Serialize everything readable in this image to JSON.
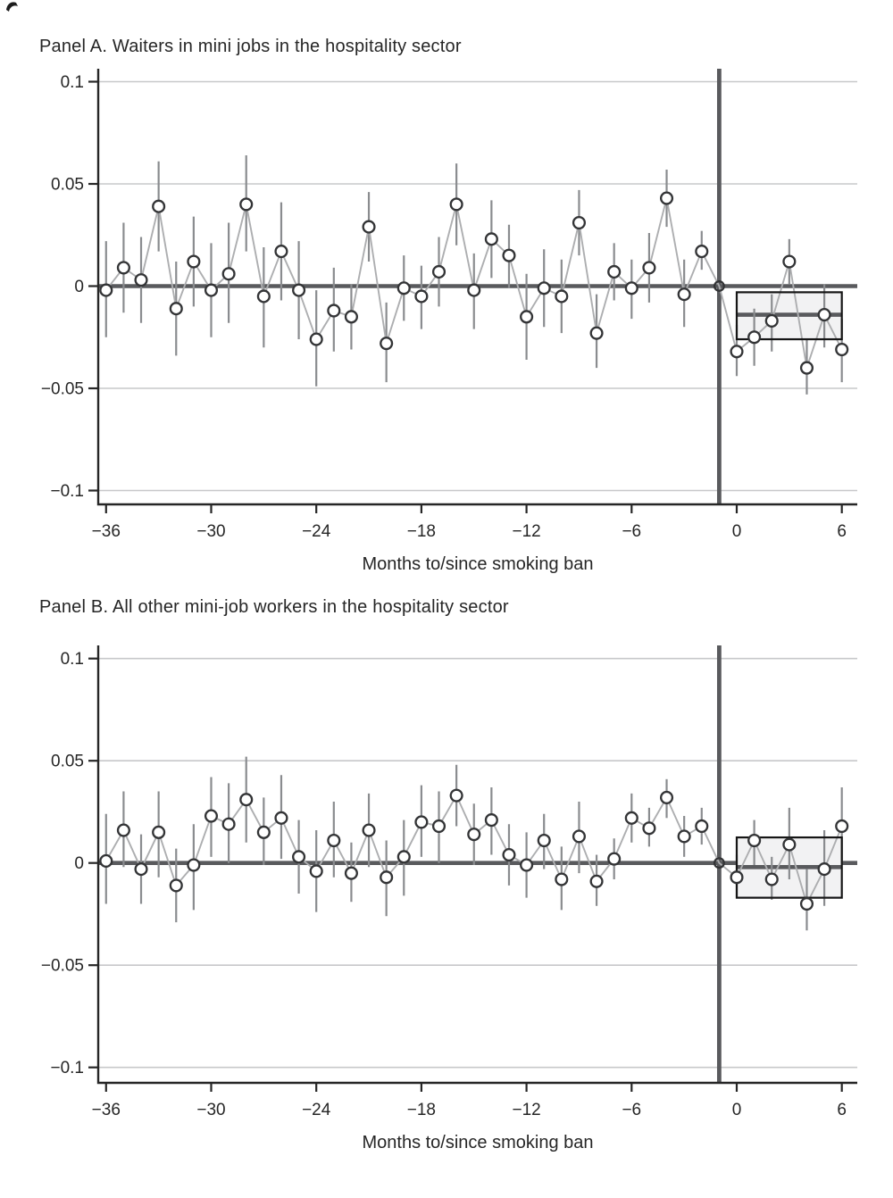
{
  "colors": {
    "background": "#ffffff",
    "text": "#262626",
    "spine": "#262626",
    "gridline": "#c7c8ca",
    "zero_line": "#595a5d",
    "event_line": "#595a5d",
    "error_bar": "#8a8c8f",
    "connector": "#adaeb0",
    "marker_stroke": "#333436",
    "marker_fill": "#ffffff",
    "post_box_fill": "#f2f2f3",
    "post_box_border": "#161616",
    "post_mean_line": "#595a5d"
  },
  "chart_data": [
    {
      "type": "scatter",
      "title": "Panel A. Waiters in mini jobs in the hospitality sector",
      "xlabel": "Months to/since smoking ban",
      "ylabel": "",
      "xlim": [
        -37,
        7
      ],
      "ylim": [
        -0.1,
        0.1
      ],
      "grid": true,
      "event_line_month": -1,
      "yticks": [
        {
          "v": 0.1,
          "label": "0.1"
        },
        {
          "v": 0.05,
          "label": "0.05"
        },
        {
          "v": 0,
          "label": "0"
        },
        {
          "v": -0.05,
          "label": "−0.05"
        },
        {
          "v": -0.1,
          "label": "−0.1"
        }
      ],
      "xticks": [
        {
          "v": -36,
          "label": "−36"
        },
        {
          "v": -30,
          "label": "−30"
        },
        {
          "v": -24,
          "label": "−24"
        },
        {
          "v": -18,
          "label": "−18"
        },
        {
          "v": -12,
          "label": "−12"
        },
        {
          "v": -6,
          "label": "−6"
        },
        {
          "v": 0,
          "label": "0"
        },
        {
          "v": 6,
          "label": "6"
        }
      ],
      "points": [
        {
          "m": -36,
          "v": -0.002,
          "lo": -0.025,
          "hi": 0.022
        },
        {
          "m": -35,
          "v": 0.009,
          "lo": -0.013,
          "hi": 0.031
        },
        {
          "m": -34,
          "v": 0.003,
          "lo": -0.018,
          "hi": 0.024
        },
        {
          "m": -33,
          "v": 0.039,
          "lo": 0.017,
          "hi": 0.061
        },
        {
          "m": -32,
          "v": -0.011,
          "lo": -0.034,
          "hi": 0.012
        },
        {
          "m": -31,
          "v": 0.012,
          "lo": -0.01,
          "hi": 0.034
        },
        {
          "m": -30,
          "v": -0.002,
          "lo": -0.025,
          "hi": 0.021
        },
        {
          "m": -29,
          "v": 0.006,
          "lo": -0.018,
          "hi": 0.031
        },
        {
          "m": -28,
          "v": 0.04,
          "lo": 0.017,
          "hi": 0.064
        },
        {
          "m": -27,
          "v": -0.005,
          "lo": -0.03,
          "hi": 0.019
        },
        {
          "m": -26,
          "v": 0.017,
          "lo": -0.007,
          "hi": 0.041
        },
        {
          "m": -25,
          "v": -0.002,
          "lo": -0.026,
          "hi": 0.022
        },
        {
          "m": -24,
          "v": -0.026,
          "lo": -0.049,
          "hi": -0.002
        },
        {
          "m": -23,
          "v": -0.012,
          "lo": -0.032,
          "hi": 0.009
        },
        {
          "m": -22,
          "v": -0.015,
          "lo": -0.031,
          "hi": 0.001
        },
        {
          "m": -21,
          "v": 0.029,
          "lo": 0.012,
          "hi": 0.046
        },
        {
          "m": -20,
          "v": -0.028,
          "lo": -0.047,
          "hi": -0.008
        },
        {
          "m": -19,
          "v": -0.001,
          "lo": -0.017,
          "hi": 0.015
        },
        {
          "m": -18,
          "v": -0.005,
          "lo": -0.021,
          "hi": 0.01
        },
        {
          "m": -17,
          "v": 0.007,
          "lo": -0.01,
          "hi": 0.024
        },
        {
          "m": -16,
          "v": 0.04,
          "lo": 0.02,
          "hi": 0.06
        },
        {
          "m": -15,
          "v": -0.002,
          "lo": -0.021,
          "hi": 0.016
        },
        {
          "m": -14,
          "v": 0.023,
          "lo": 0.004,
          "hi": 0.042
        },
        {
          "m": -13,
          "v": 0.015,
          "lo": -0.001,
          "hi": 0.03
        },
        {
          "m": -12,
          "v": -0.015,
          "lo": -0.036,
          "hi": 0.006
        },
        {
          "m": -11,
          "v": -0.001,
          "lo": -0.02,
          "hi": 0.018
        },
        {
          "m": -10,
          "v": -0.005,
          "lo": -0.023,
          "hi": 0.013
        },
        {
          "m": -9,
          "v": 0.031,
          "lo": 0.015,
          "hi": 0.047
        },
        {
          "m": -8,
          "v": -0.023,
          "lo": -0.04,
          "hi": -0.004
        },
        {
          "m": -7,
          "v": 0.007,
          "lo": -0.007,
          "hi": 0.021
        },
        {
          "m": -6,
          "v": -0.001,
          "lo": -0.016,
          "hi": 0.013
        },
        {
          "m": -5,
          "v": 0.009,
          "lo": -0.008,
          "hi": 0.026
        },
        {
          "m": -4,
          "v": 0.043,
          "lo": 0.029,
          "hi": 0.057
        },
        {
          "m": -3,
          "v": -0.004,
          "lo": -0.02,
          "hi": 0.013
        },
        {
          "m": -2,
          "v": 0.017,
          "lo": 0.008,
          "hi": 0.027
        },
        {
          "m": -1,
          "v": 0,
          "ref": true
        },
        {
          "m": 0,
          "v": -0.032,
          "lo": -0.044,
          "hi": -0.019
        },
        {
          "m": 1,
          "v": -0.025,
          "lo": -0.039,
          "hi": -0.011
        },
        {
          "m": 2,
          "v": -0.017,
          "lo": -0.032,
          "hi": -0.004
        },
        {
          "m": 3,
          "v": 0.012,
          "lo": 0.001,
          "hi": 0.023
        },
        {
          "m": 4,
          "v": -0.04,
          "lo": -0.053,
          "hi": -0.026
        },
        {
          "m": 5,
          "v": -0.014,
          "lo": -0.03,
          "hi": 0.001
        },
        {
          "m": 6,
          "v": -0.031,
          "lo": -0.047,
          "hi": -0.016
        }
      ],
      "post_average": {
        "from": 0,
        "to": 6,
        "mean": -0.014,
        "lo": -0.026,
        "hi": -0.003
      }
    },
    {
      "type": "scatter",
      "title": "Panel B. All other mini-job workers in the hospitality sector",
      "xlabel": "Months to/since smoking ban",
      "ylabel": "",
      "xlim": [
        -37,
        7
      ],
      "ylim": [
        -0.1,
        0.1
      ],
      "grid": true,
      "event_line_month": -1,
      "yticks": [
        {
          "v": 0.1,
          "label": "0.1"
        },
        {
          "v": 0.05,
          "label": "0.05"
        },
        {
          "v": 0,
          "label": "0"
        },
        {
          "v": -0.05,
          "label": "−0.05"
        },
        {
          "v": -0.1,
          "label": "−0.1"
        }
      ],
      "xticks": [
        {
          "v": -36,
          "label": "−36"
        },
        {
          "v": -30,
          "label": "−30"
        },
        {
          "v": -24,
          "label": "−24"
        },
        {
          "v": -18,
          "label": "−18"
        },
        {
          "v": -12,
          "label": "−12"
        },
        {
          "v": -6,
          "label": "−6"
        },
        {
          "v": 0,
          "label": "0"
        },
        {
          "v": 6,
          "label": "6"
        }
      ],
      "points": [
        {
          "m": -36,
          "v": 0.001,
          "lo": -0.02,
          "hi": 0.024
        },
        {
          "m": -35,
          "v": 0.016,
          "lo": -0.002,
          "hi": 0.035
        },
        {
          "m": -34,
          "v": -0.003,
          "lo": -0.02,
          "hi": 0.014
        },
        {
          "m": -33,
          "v": 0.015,
          "lo": -0.007,
          "hi": 0.035
        },
        {
          "m": -32,
          "v": -0.011,
          "lo": -0.029,
          "hi": 0.007
        },
        {
          "m": -31,
          "v": -0.001,
          "lo": -0.023,
          "hi": 0.019
        },
        {
          "m": -30,
          "v": 0.023,
          "lo": 0.003,
          "hi": 0.042
        },
        {
          "m": -29,
          "v": 0.019,
          "lo": 0.0,
          "hi": 0.039
        },
        {
          "m": -28,
          "v": 0.031,
          "lo": 0.01,
          "hi": 0.052
        },
        {
          "m": -27,
          "v": 0.015,
          "lo": -0.001,
          "hi": 0.032
        },
        {
          "m": -26,
          "v": 0.022,
          "lo": 0.002,
          "hi": 0.043
        },
        {
          "m": -25,
          "v": 0.003,
          "lo": -0.015,
          "hi": 0.021
        },
        {
          "m": -24,
          "v": -0.004,
          "lo": -0.024,
          "hi": 0.016
        },
        {
          "m": -23,
          "v": 0.011,
          "lo": -0.007,
          "hi": 0.03
        },
        {
          "m": -22,
          "v": -0.005,
          "lo": -0.019,
          "hi": 0.01
        },
        {
          "m": -21,
          "v": 0.016,
          "lo": -0.002,
          "hi": 0.034
        },
        {
          "m": -20,
          "v": -0.007,
          "lo": -0.026,
          "hi": 0.011
        },
        {
          "m": -19,
          "v": 0.003,
          "lo": -0.016,
          "hi": 0.021
        },
        {
          "m": -18,
          "v": 0.02,
          "lo": 0.003,
          "hi": 0.038
        },
        {
          "m": -17,
          "v": 0.018,
          "lo": 0.0,
          "hi": 0.035
        },
        {
          "m": -16,
          "v": 0.033,
          "lo": 0.018,
          "hi": 0.048
        },
        {
          "m": -15,
          "v": 0.014,
          "lo": -0.001,
          "hi": 0.029
        },
        {
          "m": -14,
          "v": 0.021,
          "lo": 0.004,
          "hi": 0.037
        },
        {
          "m": -13,
          "v": 0.004,
          "lo": -0.011,
          "hi": 0.019
        },
        {
          "m": -12,
          "v": -0.001,
          "lo": -0.017,
          "hi": 0.015
        },
        {
          "m": -11,
          "v": 0.011,
          "lo": -0.003,
          "hi": 0.024
        },
        {
          "m": -10,
          "v": -0.008,
          "lo": -0.023,
          "hi": 0.008
        },
        {
          "m": -9,
          "v": 0.013,
          "lo": -0.005,
          "hi": 0.03
        },
        {
          "m": -8,
          "v": -0.009,
          "lo": -0.021,
          "hi": 0.004
        },
        {
          "m": -7,
          "v": 0.002,
          "lo": -0.008,
          "hi": 0.012
        },
        {
          "m": -6,
          "v": 0.022,
          "lo": 0.01,
          "hi": 0.034
        },
        {
          "m": -5,
          "v": 0.017,
          "lo": 0.008,
          "hi": 0.027
        },
        {
          "m": -4,
          "v": 0.032,
          "lo": 0.022,
          "hi": 0.041
        },
        {
          "m": -3,
          "v": 0.013,
          "lo": 0.003,
          "hi": 0.023
        },
        {
          "m": -2,
          "v": 0.018,
          "lo": 0.009,
          "hi": 0.027
        },
        {
          "m": -1,
          "v": 0,
          "ref": true
        },
        {
          "m": 0,
          "v": -0.007,
          "lo": -0.017,
          "hi": 0.004
        },
        {
          "m": 1,
          "v": 0.011,
          "lo": -0.001,
          "hi": 0.021
        },
        {
          "m": 2,
          "v": -0.008,
          "lo": -0.018,
          "hi": 0.003
        },
        {
          "m": 3,
          "v": 0.009,
          "lo": -0.008,
          "hi": 0.027
        },
        {
          "m": 4,
          "v": -0.02,
          "lo": -0.033,
          "hi": -0.003
        },
        {
          "m": 5,
          "v": -0.003,
          "lo": -0.021,
          "hi": 0.016
        },
        {
          "m": 6,
          "v": 0.018,
          "lo": 0.0,
          "hi": 0.037
        }
      ],
      "post_average": {
        "from": 0,
        "to": 6,
        "mean": -0.002,
        "lo": -0.017,
        "hi": 0.0125
      }
    }
  ]
}
